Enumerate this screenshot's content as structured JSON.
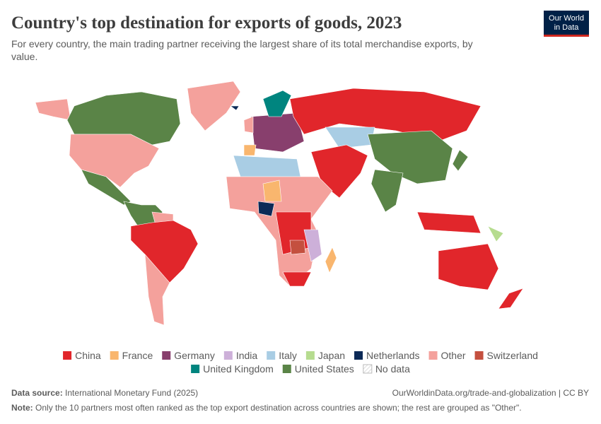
{
  "header": {
    "title": "Country's top destination for exports of goods, 2023",
    "subtitle": [
      "For every country, the main trading partner receiving the largest share of its total merchandise exports, by",
      "value."
    ],
    "logo": [
      "Our World",
      "in Data"
    ]
  },
  "legend": [
    {
      "name": "China",
      "color": "#e1262b"
    },
    {
      "name": "France",
      "color": "#f9b66e"
    },
    {
      "name": "Germany",
      "color": "#883f6d"
    },
    {
      "name": "India",
      "color": "#cdb0d9"
    },
    {
      "name": "Italy",
      "color": "#a9cde4"
    },
    {
      "name": "Japan",
      "color": "#b6dc8f"
    },
    {
      "name": "Netherlands",
      "color": "#0c2a57"
    },
    {
      "name": "Other",
      "color": "#f4a19c"
    },
    {
      "name": "Switzerland",
      "color": "#c4503f"
    },
    {
      "name": "United Kingdom",
      "color": "#00857f"
    },
    {
      "name": "United States",
      "color": "#5a8447"
    },
    {
      "name": "No data",
      "color": "none"
    }
  ],
  "footer": {
    "source_label": "Data source:",
    "source": "International Monetary Fund (2025)",
    "url": "OurWorldinData.org/trade-and-globalization | CC BY",
    "note_label": "Note:",
    "note": "Only the 10 partners most often ranked as the top export destination across countries are shown; the rest are grouped as \"Other\"."
  }
}
